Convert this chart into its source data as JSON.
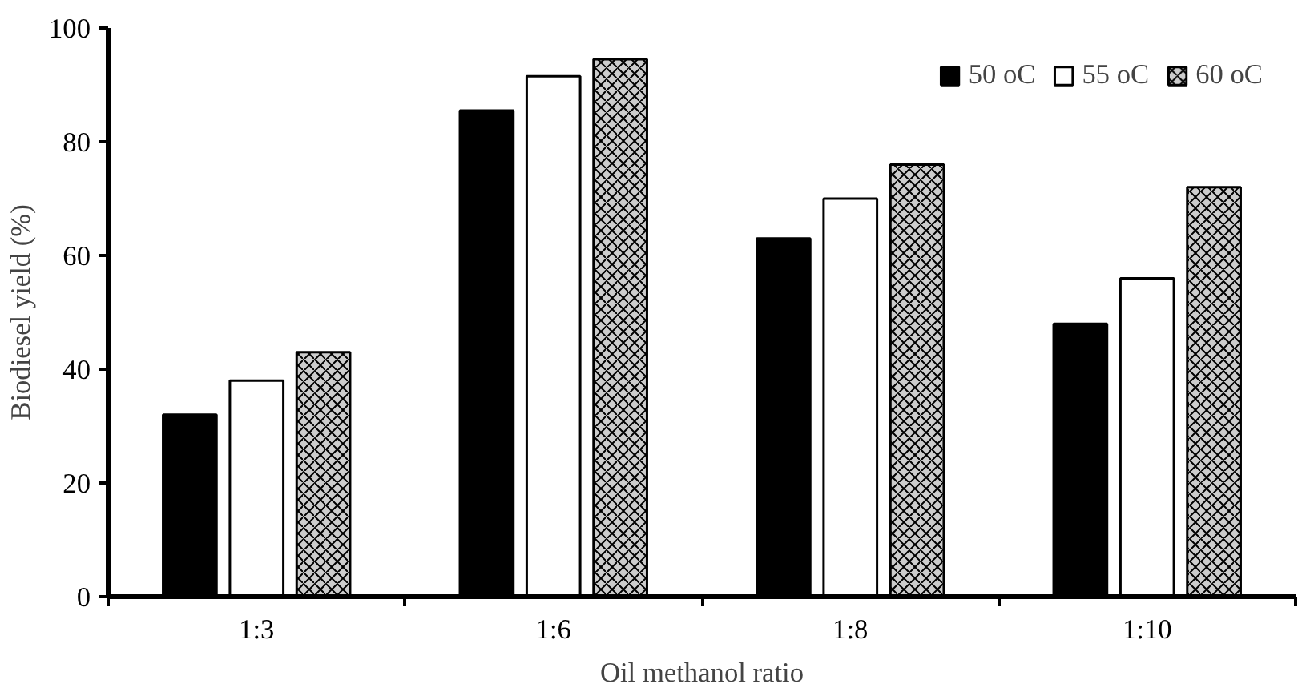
{
  "chart_data": {
    "type": "bar",
    "xlabel": "Oil methanol ratio",
    "ylabel": "Biodiesel yield (%)",
    "categories": [
      "1:3",
      "1:6",
      "1:8",
      "1:10"
    ],
    "series": [
      {
        "name": "50 oC",
        "color": "#000000",
        "values": [
          32,
          85.5,
          63,
          48
        ]
      },
      {
        "name": "55 oC",
        "color": "#ffffff",
        "values": [
          38,
          91.5,
          70,
          56
        ]
      },
      {
        "name": "60 oC",
        "color": "#cccccc",
        "values": [
          43,
          94.5,
          76,
          72
        ]
      }
    ],
    "ylim": [
      0,
      100
    ],
    "yticks": [
      0,
      20,
      40,
      60,
      80,
      100
    ],
    "grid": false,
    "legend": "top right"
  }
}
